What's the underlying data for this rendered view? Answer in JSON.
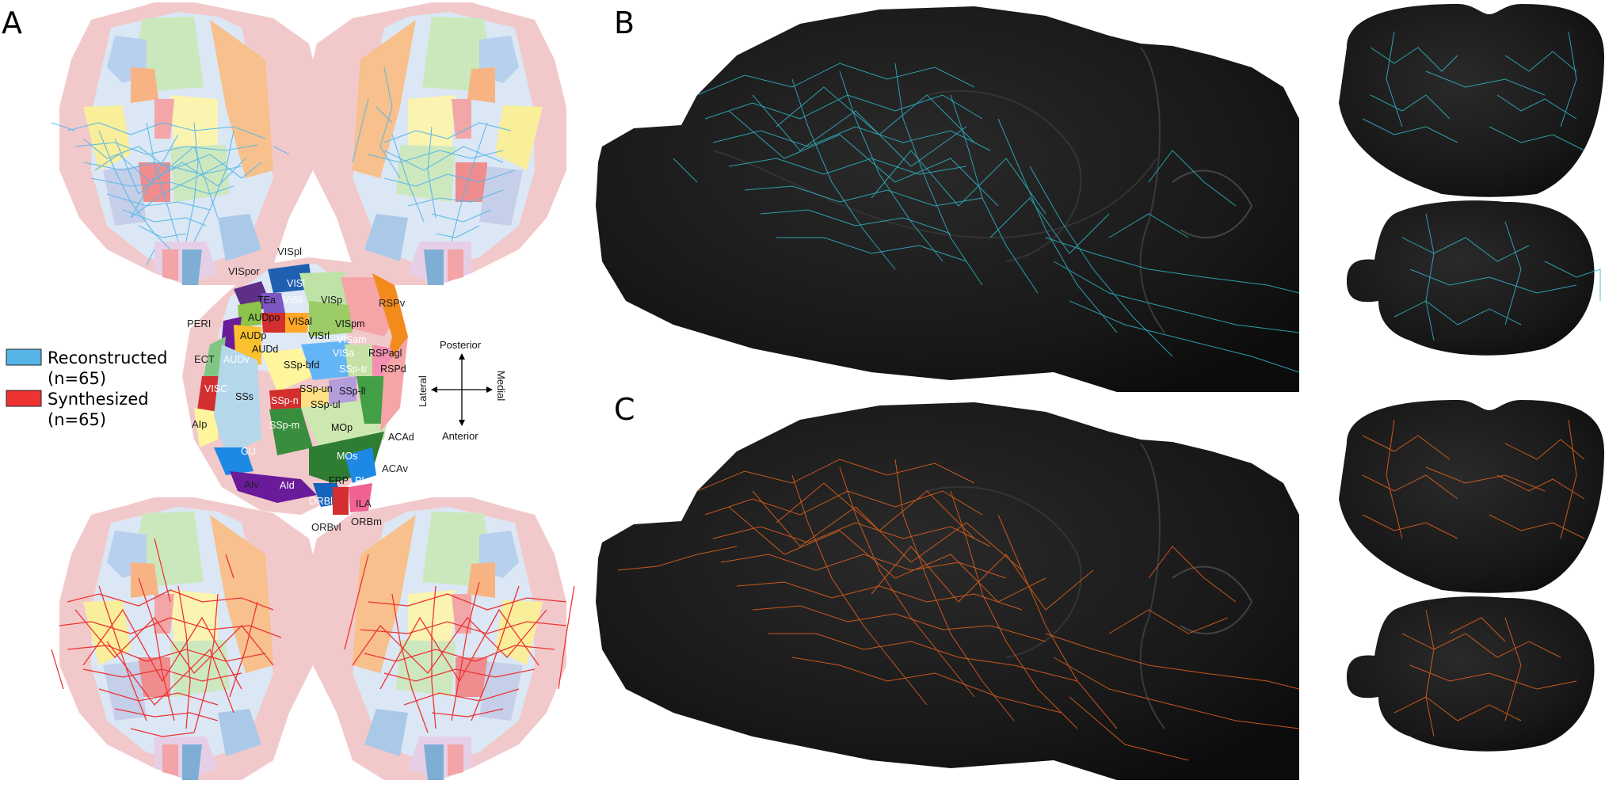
{
  "panels": {
    "a": "A",
    "b": "B",
    "c": "C"
  },
  "legend": {
    "items": [
      {
        "label": "Reconstructed",
        "count": "(n=65)",
        "color": "#58b4e6"
      },
      {
        "label": "Synthesized",
        "count": "(n=65)",
        "color": "#ee3333"
      }
    ]
  },
  "compass": {
    "posterior": "Posterior",
    "anterior": "Anterior",
    "lateral": "Lateral",
    "medial": "Medial"
  },
  "regions": {
    "VISpl": "VISpl",
    "VISpor": "VISpor",
    "VISl": "VISl",
    "VISli": "VISli",
    "VISp": "VISp",
    "RSPv": "RSPv",
    "TEa": "TEa",
    "VISal": "VISal",
    "VISrl": "VISrl",
    "VISpm": "VISpm",
    "VISam": "VISam",
    "PERI": "PERI",
    "AUDpo": "AUDpo",
    "AUDp": "AUDp",
    "AUDd": "AUDd",
    "AUDv": "AUDv",
    "ECT": "ECT",
    "SSp-bfd": "SSp-bfd",
    "SSp-tr": "SSp-tr",
    "VISa": "VISa",
    "RSPagl": "RSPagl",
    "RSPd": "RSPd",
    "VISC": "VISC",
    "SSs": "SSs",
    "SSp-n": "SSp-n",
    "SSp-un": "SSp-un",
    "SSp-ul": "SSp-ul",
    "SSp-ll": "SSp-ll",
    "AIp": "AIp",
    "SSp-m": "SSp-m",
    "MOp": "MOp",
    "ACAd": "ACAd",
    "GU": "GU",
    "MOs": "MOs",
    "ACAv": "ACAv",
    "AIv": "AIv",
    "AId": "AId",
    "FRP": "FRP",
    "PL": "PL",
    "ORBl": "ORBl",
    "ILA": "ILA",
    "ORBvl": "ORBvl",
    "ORBm": "ORBm"
  },
  "colors": {
    "reconstructed_trace": "#5ab8e8",
    "synthesized_trace": "#ee3333",
    "panel_b_trace": "#2fb6c8",
    "panel_c_trace": "#e8621c",
    "brain_dark": "#151515"
  }
}
